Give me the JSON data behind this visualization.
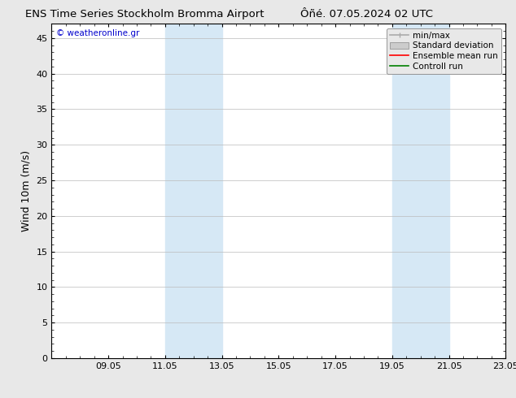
{
  "title_left": "ENS Time Series Stockholm Bromma Airport",
  "title_right": "Ôñé. 07.05.2024 02 UTC",
  "ylabel": "Wind 10m (m/s)",
  "watermark": "© weatheronline.gr",
  "watermark_color": "#0000cc",
  "xlim_start": 7.05,
  "xlim_end": 23.05,
  "ylim_min": 0,
  "ylim_max": 47,
  "yticks": [
    0,
    5,
    10,
    15,
    20,
    25,
    30,
    35,
    40,
    45
  ],
  "xtick_labels": [
    "09.05",
    "11.05",
    "13.05",
    "15.05",
    "17.05",
    "19.05",
    "21.05",
    "23.05"
  ],
  "xtick_positions": [
    9.05,
    11.05,
    13.05,
    15.05,
    17.05,
    19.05,
    21.05,
    23.05
  ],
  "shaded_bands": [
    {
      "xmin": 11.05,
      "xmax": 13.05,
      "color": "#d6e8f5"
    },
    {
      "xmin": 19.05,
      "xmax": 21.05,
      "color": "#d6e8f5"
    }
  ],
  "legend_items": [
    {
      "label": "min/max",
      "color": "#aaaaaa",
      "lw": 1.2
    },
    {
      "label": "Standard deviation",
      "color": "#cccccc",
      "lw": 6
    },
    {
      "label": "Ensemble mean run",
      "color": "red",
      "lw": 1.2
    },
    {
      "label": "Controll run",
      "color": "green",
      "lw": 1.2
    }
  ],
  "bg_color": "#e8e8e8",
  "plot_bg_color": "#ffffff",
  "grid_color": "#bbbbbb",
  "spine_color": "#000000",
  "tick_color": "#000000",
  "title_fontsize": 9.5,
  "axis_label_fontsize": 9,
  "tick_fontsize": 8,
  "legend_fontsize": 7.5
}
